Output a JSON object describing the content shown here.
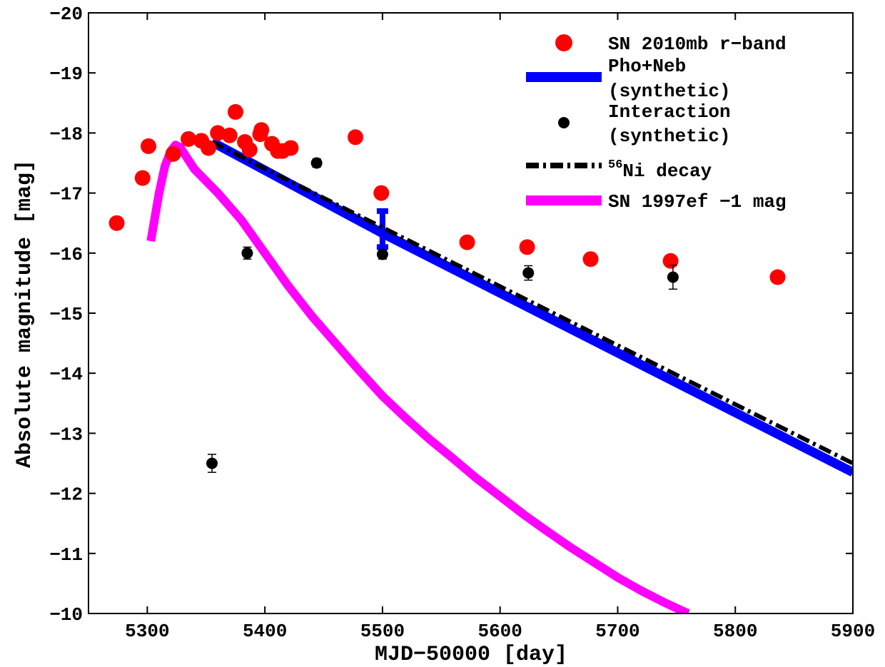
{
  "chart_data": {
    "type": "scatter",
    "xlabel": "MJD−50000 [day]",
    "ylabel": "Absolute magnitude [mag]",
    "xlim": [
      5250,
      5900
    ],
    "ylim": [
      -20,
      -10
    ],
    "y_reversed": true,
    "grid": false,
    "legend_position": "top-right",
    "xticks": [
      "5300",
      "5400",
      "5500",
      "5600",
      "5700",
      "5800",
      "5900"
    ],
    "yticks": [
      "−20",
      "−19",
      "−18",
      "−17",
      "−16",
      "−15",
      "−14",
      "−13",
      "−12",
      "−11",
      "−10"
    ],
    "legend": {
      "sn2010mb": "SN 2010mb r−band",
      "phoneb_line1": "Pho+Neb",
      "phoneb_line2": "(synthetic)",
      "interaction_line1": "Interaction",
      "interaction_line2": "(synthetic)",
      "ni_sup": "56",
      "ni_text": "Ni decay",
      "sn1997ef": "SN 1997ef −1 mag"
    },
    "series": [
      {
        "key": "sn2010mb",
        "style": "markers",
        "color": "#ff0000",
        "points": [
          [
            5274,
            -16.5
          ],
          [
            5296,
            -17.25
          ],
          [
            5301,
            -17.78
          ],
          [
            5322,
            -17.65
          ],
          [
            5335,
            -17.9
          ],
          [
            5346,
            -17.87
          ],
          [
            5352,
            -17.75
          ],
          [
            5360,
            -18.0
          ],
          [
            5370,
            -17.96
          ],
          [
            5375,
            -18.35
          ],
          [
            5383,
            -17.85
          ],
          [
            5387,
            -17.72
          ],
          [
            5396,
            -17.98
          ],
          [
            5397,
            -18.05
          ],
          [
            5406,
            -17.82
          ],
          [
            5411,
            -17.7
          ],
          [
            5415,
            -17.7
          ],
          [
            5422,
            -17.75
          ],
          [
            5477,
            -17.93
          ],
          [
            5499,
            -17.0
          ],
          [
            5572,
            -16.18
          ],
          [
            5623,
            -16.1
          ],
          [
            5677,
            -15.9
          ],
          [
            5745,
            -15.87
          ],
          [
            5836,
            -15.6
          ]
        ]
      },
      {
        "key": "phoneb",
        "style": "line",
        "color": "#0000ff",
        "points": [
          [
            5355,
            -17.85
          ],
          [
            5500,
            -16.33
          ],
          [
            5900,
            -12.35
          ]
        ],
        "errorbars": [
          [
            5500,
            -16.4,
            0.3
          ]
        ]
      },
      {
        "key": "interaction",
        "style": "markers",
        "color": "#000000",
        "points": [
          [
            5355,
            -12.5,
            0.15
          ],
          [
            5385,
            -16.0,
            0.1
          ],
          [
            5444,
            -17.5,
            0.07
          ],
          [
            5500,
            -15.98,
            0.08
          ],
          [
            5624,
            -15.67,
            0.12
          ],
          [
            5747,
            -15.6,
            0.2
          ]
        ]
      },
      {
        "key": "ni",
        "style": "dashdot",
        "color": "#000000",
        "points": [
          [
            5355,
            -17.85
          ],
          [
            5900,
            -12.5
          ]
        ]
      },
      {
        "key": "sn1997ef",
        "style": "line",
        "color": "#ff00ff",
        "points": [
          [
            5303,
            -16.2
          ],
          [
            5310,
            -17.0
          ],
          [
            5315,
            -17.45
          ],
          [
            5320,
            -17.7
          ],
          [
            5324,
            -17.8
          ],
          [
            5328,
            -17.76
          ],
          [
            5340,
            -17.4
          ],
          [
            5360,
            -17.0
          ],
          [
            5380,
            -16.55
          ],
          [
            5400,
            -16.0
          ],
          [
            5420,
            -15.45
          ],
          [
            5440,
            -14.95
          ],
          [
            5460,
            -14.5
          ],
          [
            5480,
            -14.05
          ],
          [
            5500,
            -13.62
          ],
          [
            5520,
            -13.25
          ],
          [
            5540,
            -12.9
          ],
          [
            5560,
            -12.58
          ],
          [
            5580,
            -12.25
          ],
          [
            5600,
            -11.95
          ],
          [
            5620,
            -11.65
          ],
          [
            5640,
            -11.37
          ],
          [
            5660,
            -11.1
          ],
          [
            5680,
            -10.85
          ],
          [
            5700,
            -10.6
          ],
          [
            5720,
            -10.38
          ],
          [
            5740,
            -10.18
          ],
          [
            5760,
            -10.0
          ]
        ]
      }
    ]
  }
}
